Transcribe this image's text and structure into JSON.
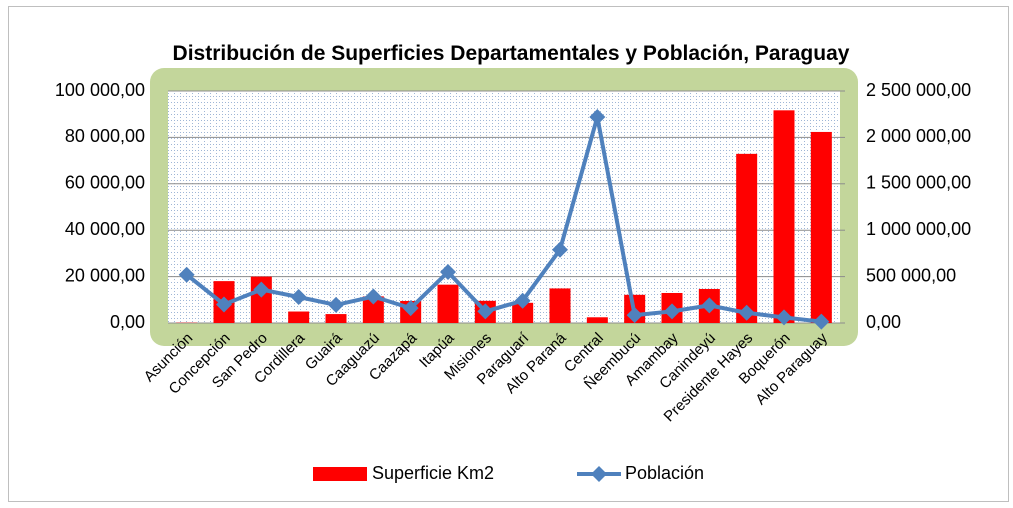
{
  "chart_data": {
    "type": "bar-line",
    "title": "Distribución de Superficies Departamentales y Población, Paraguay",
    "categories": [
      "Asunción",
      "Concepción",
      "San Pedro",
      "Cordillera",
      "Guairá",
      "Caaguazú",
      "Caazapá",
      "Itapúa",
      "Misiones",
      "Paraguarí",
      "Alto Paraná",
      "Central",
      "Ñeembucú",
      "Amambay",
      "Canindeyú",
      "Presidente Hayes",
      "Boquerón",
      "Alto Paraguay"
    ],
    "series": [
      {
        "name": "Superficie Km2",
        "type": "bar",
        "color": "#ff0000",
        "axis": "y",
        "values": [
          117,
          18051,
          20002,
          4948,
          3846,
          11474,
          9496,
          16525,
          9556,
          8705,
          14895,
          2465,
          12147,
          12933,
          14667,
          72907,
          91669,
          82349
        ]
      },
      {
        "name": "Población",
        "type": "line",
        "color": "#4f81bd",
        "axis": "y2",
        "values": [
          520000,
          200000,
          360000,
          280000,
          195000,
          285000,
          160000,
          550000,
          125000,
          240000,
          790000,
          2220000,
          85000,
          125000,
          190000,
          110000,
          60000,
          15000
        ]
      }
    ],
    "ylim": [
      0,
      100000
    ],
    "yticks": [
      {
        "value": 0,
        "label": "0,00"
      },
      {
        "value": 20000,
        "label": "20 000,00"
      },
      {
        "value": 40000,
        "label": "40 000,00"
      },
      {
        "value": 60000,
        "label": "60 000,00"
      },
      {
        "value": 80000,
        "label": "80 000,00"
      },
      {
        "value": 100000,
        "label": "100 000,00"
      }
    ],
    "y2lim": [
      0,
      2500000
    ],
    "y2ticks": [
      {
        "value": 0,
        "label": "0,00"
      },
      {
        "value": 500000,
        "label": "500 000,00"
      },
      {
        "value": 1000000,
        "label": "1 000 000,00"
      },
      {
        "value": 1500000,
        "label": "1 500 000,00"
      },
      {
        "value": 2000000,
        "label": "2 000 000,00"
      },
      {
        "value": 2500000,
        "label": "2 500 000,00"
      }
    ],
    "grid": true,
    "legend": "bottom"
  }
}
